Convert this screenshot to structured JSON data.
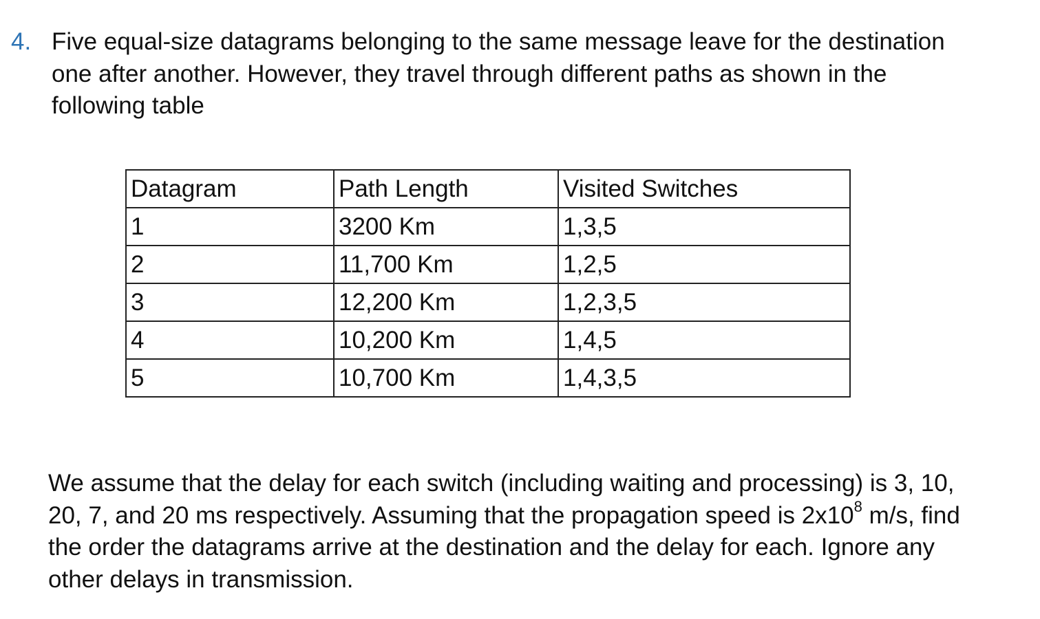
{
  "question": {
    "number": "4.",
    "intro": "Five equal-size datagrams belonging to the same message leave for the destination one after another. However, they travel through different paths as shown in the following table",
    "table": {
      "headers": [
        "Datagram",
        "Path Length",
        "Visited Switches"
      ],
      "rows": [
        [
          "1",
          "3200 Km",
          "1,3,5"
        ],
        [
          "2",
          "11,700 Km",
          "1,2,5"
        ],
        [
          "3",
          "12,200 Km",
          "1,2,3,5"
        ],
        [
          "4",
          "10,200 Km",
          "1,4,5"
        ],
        [
          "5",
          "10,700 Km",
          "1,4,3,5"
        ]
      ]
    },
    "followup": {
      "part1": "We assume that the delay for each switch (including waiting and processing) is 3, 10, 20, 7, and 20 ms respectively. Assuming that the propagation speed is 2x10",
      "exponent": "8",
      "part2": " m/s, find the order the datagrams arrive at the destination and the delay for each. Ignore any other delays in transmission."
    }
  },
  "colors": {
    "number_accent": "#2e74b5",
    "text": "#111111",
    "border": "#222222"
  }
}
